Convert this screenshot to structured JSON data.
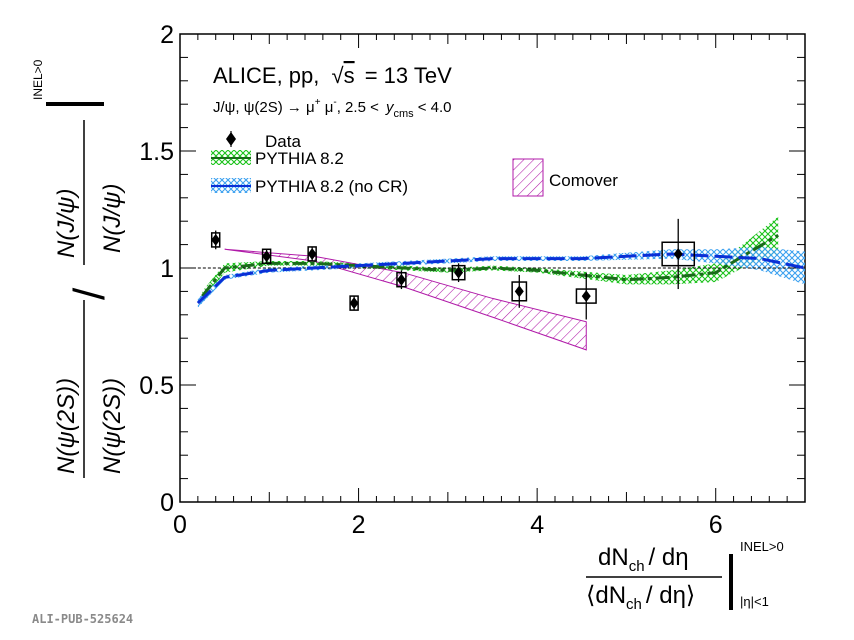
{
  "colors": {
    "data": "#000000",
    "pythia": "#1a6b1a",
    "pythia_band": "#19c219",
    "pythia_nocr": "#0a2fd6",
    "pythia_nocr_band": "#3aa0f0",
    "comover": "#b01aa8",
    "unity_line": "#000000"
  },
  "header": {
    "experiment": "ALICE, pp,",
    "energy_value": "= 13 TeV",
    "sqrt": "√",
    "s": "s",
    "process": "J/ψ, ψ(2S) → μ",
    "process_sup1": "+",
    "process_mid": " μ",
    "process_sup2": "-",
    "process_range": ", 2.5 <",
    "y": "y",
    "y_sub": "cms",
    "process_end": "< 4.0"
  },
  "legend": {
    "data": "Data",
    "pythia": "PYTHIA 8.2",
    "pythia_nocr": "PYTHIA 8.2 (no CR)",
    "comover": "Comover"
  },
  "y_axis_title": {
    "num_top": "N(J/ψ)",
    "den_top": "N(J/ψ)",
    "num_bottom": "N(ψ(2S))",
    "den_bottom": "N(ψ(2S))",
    "slash": "/",
    "superscript": "INEL>0"
  },
  "x_axis_title": {
    "numerator_d": "dN",
    "numerator_sub": "ch",
    "numerator_rest": "/ dη",
    "denominator": "⟨dN",
    "denominator_sub": "ch",
    "denominator_rest": "/ dη⟩",
    "superscript": "INEL>0",
    "subscript": "|η|<1"
  },
  "watermark": "ALI-PUB-525624",
  "chart_data": {
    "type": "scatter",
    "xlim": [
      0,
      7
    ],
    "ylim": [
      0,
      2
    ],
    "x_ticks": [
      0,
      2,
      4,
      6
    ],
    "y_ticks": [
      0,
      0.5,
      1,
      1.5,
      2
    ],
    "x_tick_labels": [
      "0",
      "2",
      "4",
      "6"
    ],
    "y_tick_labels": [
      "0",
      "0.5",
      "1",
      "1.5",
      "2"
    ],
    "reference_line": 1,
    "series": [
      {
        "name": "Data",
        "kind": "points",
        "points": [
          {
            "x": 0.4,
            "y": 1.12,
            "stat": 0.04,
            "sys": 0.03,
            "xsys": 0.03
          },
          {
            "x": 0.97,
            "y": 1.05,
            "stat": 0.03,
            "sys": 0.03,
            "xsys": 0.03
          },
          {
            "x": 1.48,
            "y": 1.06,
            "stat": 0.03,
            "sys": 0.03,
            "xsys": 0.03
          },
          {
            "x": 1.95,
            "y": 0.85,
            "stat": 0.03,
            "sys": 0.03,
            "xsys": 0.03
          },
          {
            "x": 2.48,
            "y": 0.95,
            "stat": 0.04,
            "sys": 0.03,
            "xsys": 0.05
          },
          {
            "x": 3.12,
            "y": 0.98,
            "stat": 0.04,
            "sys": 0.03,
            "xsys": 0.07
          },
          {
            "x": 3.8,
            "y": 0.9,
            "stat": 0.07,
            "sys": 0.04,
            "xsys": 0.08
          },
          {
            "x": 4.55,
            "y": 0.88,
            "stat": 0.1,
            "sys": 0.03,
            "xsys": 0.11
          },
          {
            "x": 5.58,
            "y": 1.06,
            "stat": 0.15,
            "sys": 0.05,
            "xsys": 0.18
          }
        ]
      },
      {
        "name": "PYTHIA 8.2",
        "kind": "band-line",
        "x": [
          0.25,
          0.5,
          1.0,
          1.5,
          2.0,
          2.5,
          3.0,
          3.5,
          4.0,
          4.5,
          5.0,
          5.5,
          6.0,
          6.3,
          6.7
        ],
        "y": [
          0.88,
          1.0,
          1.02,
          1.02,
          1.01,
          1.0,
          0.99,
          1.0,
          0.99,
          0.97,
          0.95,
          0.96,
          0.98,
          1.05,
          1.14
        ],
        "err": [
          0.02,
          0.02,
          0.01,
          0.01,
          0.01,
          0.01,
          0.01,
          0.01,
          0.01,
          0.015,
          0.02,
          0.03,
          0.04,
          0.05,
          0.08
        ]
      },
      {
        "name": "PYTHIA 8.2 (no CR)",
        "kind": "band-line",
        "x": [
          0.2,
          0.5,
          1.0,
          1.5,
          2.0,
          2.5,
          3.0,
          3.5,
          4.0,
          4.5,
          5.0,
          5.5,
          6.0,
          6.5,
          7.0
        ],
        "y": [
          0.85,
          0.96,
          0.99,
          1.0,
          1.01,
          1.02,
          1.03,
          1.04,
          1.04,
          1.04,
          1.05,
          1.06,
          1.05,
          1.04,
          1.0
        ],
        "err": [
          0.02,
          0.01,
          0.01,
          0.01,
          0.01,
          0.01,
          0.01,
          0.01,
          0.01,
          0.01,
          0.015,
          0.02,
          0.03,
          0.05,
          0.07
        ]
      },
      {
        "name": "Comover",
        "kind": "band",
        "x": [
          0.5,
          1.5,
          2.5,
          3.5,
          4.55
        ],
        "y_upper": [
          1.08,
          1.05,
          0.98,
          0.87,
          0.77
        ],
        "y_lower": [
          1.08,
          1.03,
          0.92,
          0.79,
          0.65
        ]
      }
    ]
  }
}
